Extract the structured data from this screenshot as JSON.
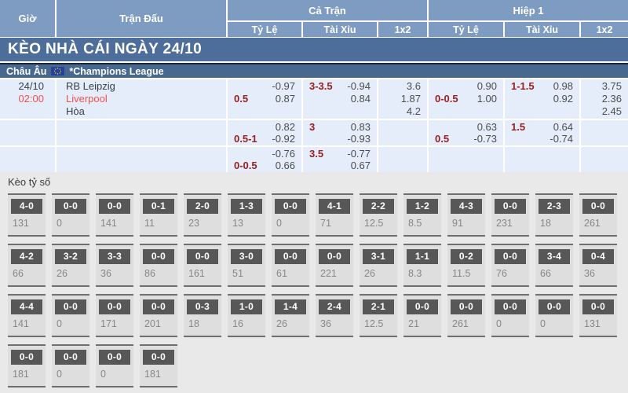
{
  "colors": {
    "header_blue": "#7e9cc2",
    "banner_blue": "#4d6e9a",
    "league_blue": "#47688f",
    "row_light_blue": "#e4edf9",
    "handicap_red": "#9a2020",
    "highlight_red": "#f25050",
    "score_chip_gray": "#575757"
  },
  "header": {
    "col_time": "Giờ",
    "col_match": "Trận Đấu",
    "full_match": {
      "label": "Cả Trận",
      "subs": [
        "Tỷ Lệ",
        "Tài Xỉu",
        "1x2"
      ]
    },
    "first_half": {
      "label": "Hiệp 1",
      "subs": [
        "Tỷ Lệ",
        "Tài Xỉu",
        "1x2"
      ]
    }
  },
  "banner": {
    "title": "KÈO NHÀ CÁI NGÀY 24/10"
  },
  "league": {
    "region": "Châu Âu",
    "flag_icon": "eu-flag",
    "name": "*Champions League"
  },
  "match": {
    "date": "24/10",
    "time": "02:00",
    "home": "RB Leipzig",
    "away": "Liverpool",
    "draw": "Hòa"
  },
  "odds_rows": [
    {
      "ft_hdp": {
        "top_right": "-0.97",
        "bot_left": "0.5",
        "bot_right": "0.87"
      },
      "ft_ou": {
        "top_left": "3-3.5",
        "top_right": "-0.94",
        "bot_right": "0.84"
      },
      "ft_1x2": [
        "3.6",
        "1.87",
        "4.2"
      ],
      "h1_hdp": {
        "top_right": "0.90",
        "bot_left": "0-0.5",
        "bot_right": "1.00"
      },
      "h1_ou": {
        "top_left": "1-1.5",
        "top_right": "0.98",
        "bot_right": "0.92"
      },
      "h1_1x2": [
        "3.75",
        "2.36",
        "2.45"
      ]
    },
    {
      "ft_hdp": {
        "top_right": "0.82",
        "bot_left": "0.5-1",
        "bot_right": "-0.92"
      },
      "ft_ou": {
        "top_left": "3",
        "top_right": "0.83",
        "bot_right": "-0.93"
      },
      "ft_1x2": [],
      "h1_hdp": {
        "top_right": "0.63",
        "bot_left": "0.5",
        "bot_right": "-0.73"
      },
      "h1_ou": {
        "top_left": "1.5",
        "top_right": "0.64",
        "bot_right": "-0.74"
      },
      "h1_1x2": []
    },
    {
      "ft_hdp": {
        "top_right": "-0.76",
        "bot_left": "0-0.5",
        "bot_right": "0.66"
      },
      "ft_ou": {
        "top_left": "3.5",
        "top_right": "-0.77",
        "bot_right": "0.67"
      },
      "ft_1x2": [],
      "h1_hdp": {},
      "h1_ou": {},
      "h1_1x2": []
    }
  ],
  "score_section": {
    "title": "Kèo tỷ số",
    "rows": [
      [
        {
          "s": "4-0",
          "v": "131"
        },
        {
          "s": "0-0",
          "v": "0"
        },
        {
          "s": "0-0",
          "v": "141"
        },
        {
          "s": "0-1",
          "v": "11"
        },
        {
          "s": "2-0",
          "v": "23"
        },
        {
          "s": "1-3",
          "v": "13"
        },
        {
          "s": "0-0",
          "v": "0"
        },
        {
          "s": "4-1",
          "v": "71"
        },
        {
          "s": "2-2",
          "v": "12.5"
        },
        {
          "s": "1-2",
          "v": "8.5"
        },
        {
          "s": "4-3",
          "v": "91"
        },
        {
          "s": "0-0",
          "v": "231"
        },
        {
          "s": "2-3",
          "v": "18"
        },
        {
          "s": "0-0",
          "v": "261"
        }
      ],
      [
        {
          "s": "4-2",
          "v": "66"
        },
        {
          "s": "3-2",
          "v": "26"
        },
        {
          "s": "3-3",
          "v": "36"
        },
        {
          "s": "0-0",
          "v": "86"
        },
        {
          "s": "0-0",
          "v": "161"
        },
        {
          "s": "3-0",
          "v": "51"
        },
        {
          "s": "0-0",
          "v": "61"
        },
        {
          "s": "0-0",
          "v": "221"
        },
        {
          "s": "3-1",
          "v": "26"
        },
        {
          "s": "1-1",
          "v": "8.3"
        },
        {
          "s": "0-2",
          "v": "11.5"
        },
        {
          "s": "0-0",
          "v": "76"
        },
        {
          "s": "3-4",
          "v": "66"
        },
        {
          "s": "0-4",
          "v": "36"
        }
      ],
      [
        {
          "s": "4-4",
          "v": "141"
        },
        {
          "s": "0-0",
          "v": "0"
        },
        {
          "s": "0-0",
          "v": "171"
        },
        {
          "s": "0-0",
          "v": "201"
        },
        {
          "s": "0-3",
          "v": "18"
        },
        {
          "s": "1-0",
          "v": "16"
        },
        {
          "s": "1-4",
          "v": "26"
        },
        {
          "s": "2-4",
          "v": "36"
        },
        {
          "s": "2-1",
          "v": "12.5"
        },
        {
          "s": "0-0",
          "v": "21"
        },
        {
          "s": "0-0",
          "v": "261"
        },
        {
          "s": "0-0",
          "v": "0"
        },
        {
          "s": "0-0",
          "v": "0"
        },
        {
          "s": "0-0",
          "v": "131"
        }
      ],
      [
        {
          "s": "0-0",
          "v": "181"
        },
        {
          "s": "0-0",
          "v": "0"
        },
        {
          "s": "0-0",
          "v": "0"
        },
        {
          "s": "0-0",
          "v": "181"
        }
      ]
    ]
  }
}
